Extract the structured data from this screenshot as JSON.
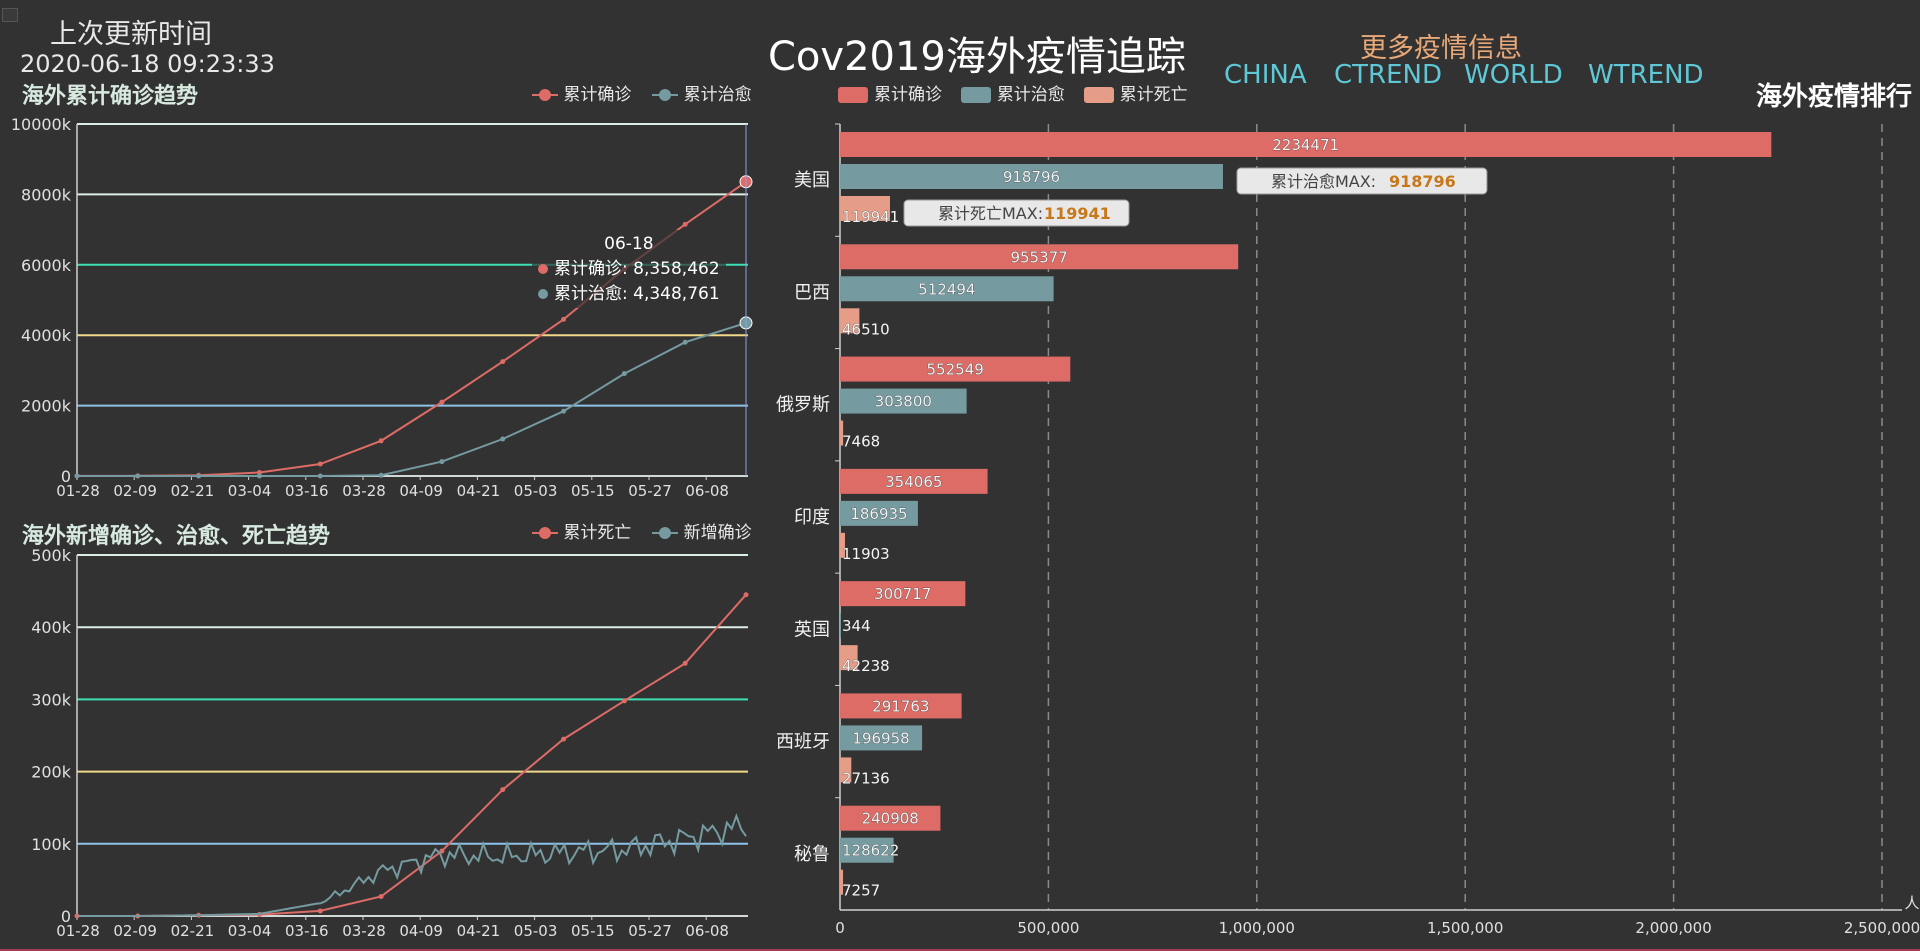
{
  "header": {
    "update_label": "上次更新时间",
    "update_time": "2020-06-18 09:23:33",
    "title": "Cov2019海外疫情追踪",
    "more_info": "更多疫情信息",
    "nav": [
      "CHINA",
      "CTREND",
      "WORLD",
      "WTREND"
    ],
    "ranking_title": "海外疫情排行"
  },
  "colors": {
    "bg": "#323232",
    "confirmed": "#dd6b66",
    "cured": "#759aa0",
    "dead": "#e69d87",
    "grid": [
      "#dbeee4",
      "#8dc1e8",
      "#f1d788",
      "#3de0b4",
      "#dbeee4",
      "#dbeee4"
    ]
  },
  "chart_data": [
    {
      "type": "line",
      "title": "海外累计确诊趋势",
      "x_ticks": [
        "01-28",
        "02-09",
        "02-21",
        "03-04",
        "03-16",
        "03-28",
        "04-09",
        "04-21",
        "05-03",
        "05-15",
        "05-27",
        "06-08"
      ],
      "ylim": [
        0,
        10000
      ],
      "y_ticks": [
        "0",
        "2000k",
        "4000k",
        "6000k",
        "8000k",
        "10000k"
      ],
      "series": [
        {
          "name": "累计确诊",
          "values": [
            3,
            5,
            20,
            100,
            340,
            1000,
            2100,
            3250,
            4450,
            5880,
            7150,
            8358
          ]
        },
        {
          "name": "累计治愈",
          "values": [
            0,
            0,
            0,
            0,
            0,
            20,
            410,
            1050,
            1840,
            2910,
            3800,
            4349
          ]
        }
      ],
      "tooltip": {
        "date": "06-18",
        "items": [
          {
            "label": "累计确诊",
            "value": "8,358,462"
          },
          {
            "label": "累计治愈",
            "value": "4,348,761"
          }
        ]
      }
    },
    {
      "type": "line",
      "title": "海外新增确诊、治愈、死亡趋势",
      "x_ticks": [
        "01-28",
        "02-09",
        "02-21",
        "03-04",
        "03-16",
        "03-28",
        "04-09",
        "04-21",
        "05-03",
        "05-15",
        "05-27",
        "06-08"
      ],
      "ylim": [
        0,
        500
      ],
      "y_ticks": [
        "0",
        "100k",
        "200k",
        "300k",
        "400k",
        "500k"
      ],
      "series": [
        {
          "name": "累计死亡",
          "values": [
            0,
            0,
            1,
            2,
            7,
            27,
            90,
            175,
            245,
            298,
            350,
            445
          ]
        },
        {
          "name": "新增确诊",
          "values": [
            0,
            0,
            1,
            3,
            18,
            62,
            85,
            82,
            88,
            92,
            108,
            126
          ]
        }
      ]
    },
    {
      "type": "bar",
      "title": "海外疫情排行",
      "categories": [
        "美国",
        "巴西",
        "俄罗斯",
        "印度",
        "英国",
        "西班牙",
        "秘鲁"
      ],
      "series": [
        {
          "name": "累计确诊",
          "values": [
            2234471,
            955377,
            552549,
            354065,
            300717,
            291763,
            240908
          ]
        },
        {
          "name": "累计治愈",
          "values": [
            918796,
            512494,
            303800,
            186935,
            344,
            196958,
            128622
          ]
        },
        {
          "name": "累计死亡",
          "values": [
            119941,
            46510,
            7468,
            11903,
            42238,
            27136,
            7257
          ]
        }
      ],
      "xlim": [
        0,
        2500000
      ],
      "x_ticks": [
        "0",
        "500,000",
        "1,000,000",
        "1,500,000",
        "2,000,000",
        "2,500,000"
      ],
      "unit": "人",
      "markers": [
        {
          "label": "累计治愈MAX: ",
          "value": "918796"
        },
        {
          "label": "累计死亡MAX: ",
          "value": "119941"
        }
      ]
    }
  ]
}
